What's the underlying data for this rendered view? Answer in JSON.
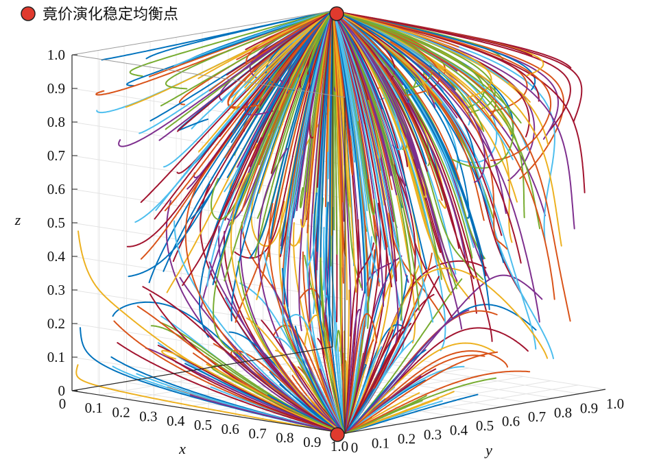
{
  "chart_data": {
    "type": "line",
    "projection": "3d",
    "description_axes": {
      "x": {
        "label": "x",
        "ticks": [
          "0",
          "0.1",
          "0.2",
          "0.3",
          "0.4",
          "0.5",
          "0.6",
          "0.7",
          "0.8",
          "0.9",
          "1.0"
        ],
        "range": [
          0,
          1
        ]
      },
      "y": {
        "label": "y",
        "ticks": [
          "0",
          "0.1",
          "0.2",
          "0.3",
          "0.4",
          "0.5",
          "0.6",
          "0.7",
          "0.8",
          "0.9",
          "1.0"
        ],
        "range": [
          0,
          1
        ]
      },
      "z": {
        "label": "z",
        "ticks": [
          "0",
          "0.1",
          "0.2",
          "0.3",
          "0.4",
          "0.5",
          "0.6",
          "0.7",
          "0.8",
          "0.9",
          "1.0"
        ],
        "range": [
          0,
          1
        ]
      }
    },
    "grid": true,
    "legend": {
      "position": "top-left",
      "entries": [
        {
          "name": "竟价演化稳定均衡点",
          "color": "#e03a2e"
        }
      ]
    },
    "equilibrium_points": [
      {
        "x": 0,
        "y": 1,
        "z": 1
      },
      {
        "x": 1,
        "y": 0,
        "z": 0
      }
    ],
    "trajectory_colors": [
      "#0072BD",
      "#D95319",
      "#EDB120",
      "#7E2F8E",
      "#77AC30",
      "#4DBEEE",
      "#A2142F"
    ],
    "trajectory_count": 600
  }
}
